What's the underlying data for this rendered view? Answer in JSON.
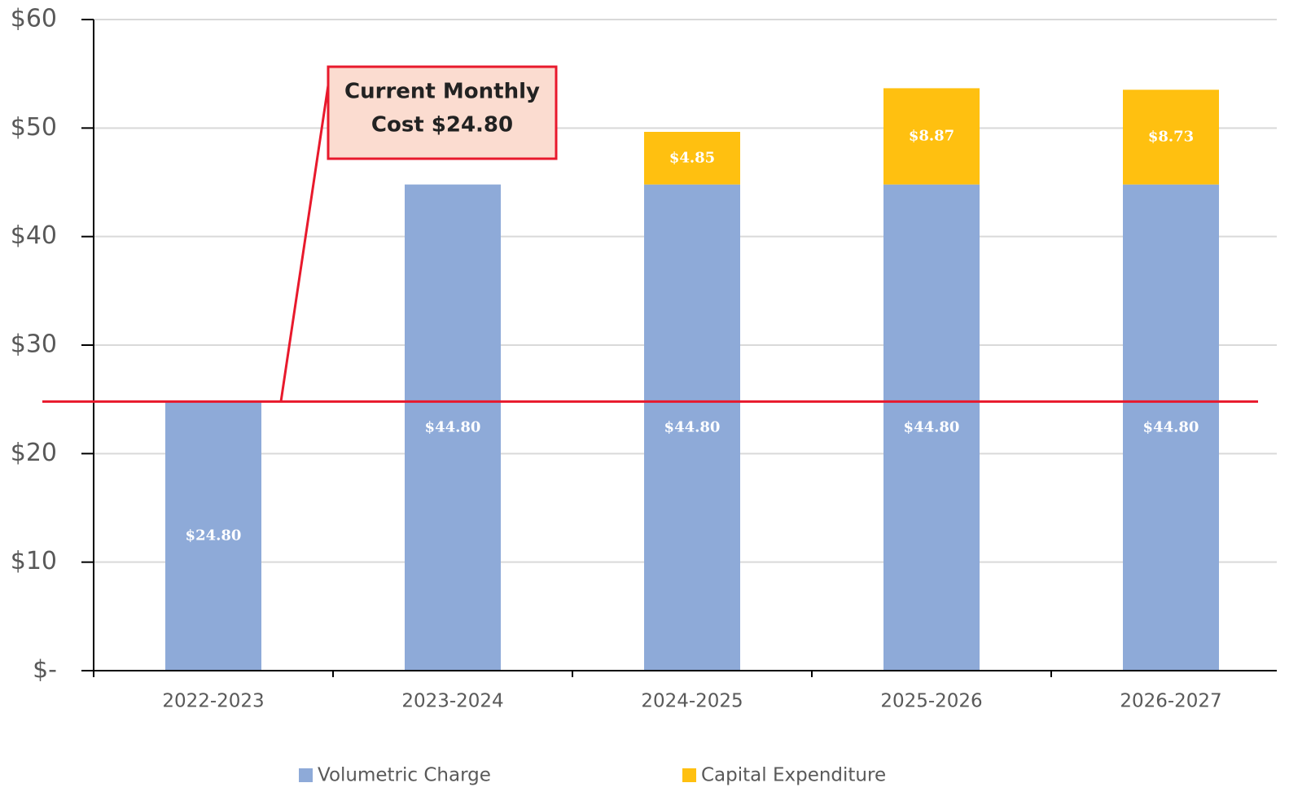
{
  "chart_data": {
    "type": "stacked_bar",
    "categories": [
      "2022-2023",
      "2023-2024",
      "2024-2025",
      "2025-2026",
      "2026-2027"
    ],
    "series": [
      {
        "name": "Volumetric Charge",
        "color": "#8eaad8",
        "values": [
          24.8,
          44.8,
          44.8,
          44.8,
          44.8
        ],
        "value_labels": [
          "$24.80",
          "$44.80",
          "$44.80",
          "$44.80",
          "$44.80"
        ]
      },
      {
        "name": "Capital Expenditure",
        "color": "#ffc010",
        "values": [
          null,
          null,
          4.85,
          8.87,
          8.73
        ],
        "value_labels": [
          null,
          null,
          "$4.85",
          "$8.87",
          "$8.73"
        ]
      }
    ],
    "ylim": [
      0,
      60
    ],
    "yticks": [
      {
        "value": 0,
        "label": "$-"
      },
      {
        "value": 10,
        "label": "$10"
      },
      {
        "value": 20,
        "label": "$20"
      },
      {
        "value": 30,
        "label": "$30"
      },
      {
        "value": 40,
        "label": "$40"
      },
      {
        "value": 50,
        "label": "$50"
      },
      {
        "value": 60,
        "label": "$60"
      }
    ],
    "grid": true,
    "legend": "bottom",
    "annotation": {
      "lines": [
        "Current Monthly",
        "Cost $24.80"
      ],
      "value": 24.8,
      "color": "#e8192c"
    }
  }
}
